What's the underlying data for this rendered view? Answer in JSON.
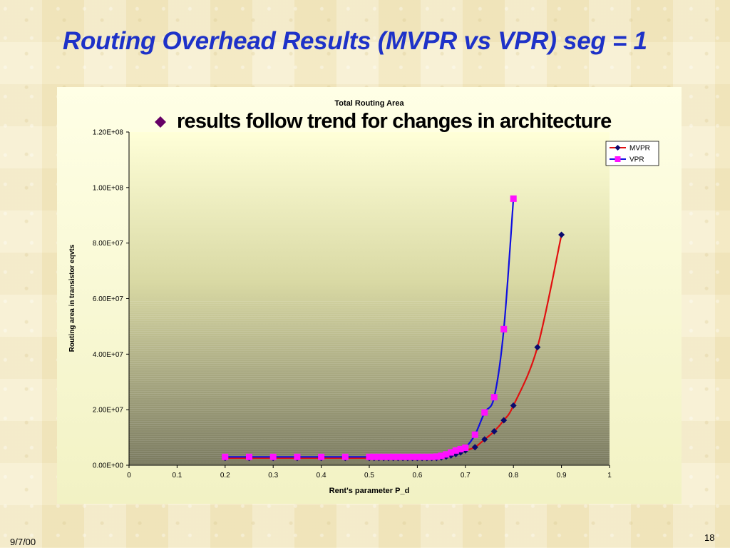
{
  "slide": {
    "title": "Routing Overhead Results  (MVPR vs VPR) seg = 1",
    "bullet": "results follow trend for changes in architecture",
    "bullet_icon": "diamond-bullet-icon",
    "date": "9/7/00",
    "page_number": "18"
  },
  "colors": {
    "title": "#1e32c8",
    "mvpr_line": "#e01010",
    "mvpr_marker": "#0a0a6e",
    "vpr_line": "#1010e0",
    "vpr_marker": "#ff10ff",
    "bullet": "#660066"
  },
  "chart_data": {
    "type": "line",
    "title": "Total Routing Area",
    "xlabel": "Rent's parameter P_d",
    "ylabel": "Routing area in transistor eqvts",
    "xlim": [
      0,
      1
    ],
    "ylim": [
      0,
      120000000
    ],
    "xticks": [
      "0",
      "0.1",
      "0.2",
      "0.3",
      "0.4",
      "0.5",
      "0.6",
      "0.7",
      "0.8",
      "0.9",
      "1"
    ],
    "yticks": [
      "0.00E+00",
      "2.00E+07",
      "4.00E+07",
      "6.00E+07",
      "8.00E+07",
      "1.00E+08",
      "1.20E+08"
    ],
    "grid": false,
    "legend_position": "top-right",
    "series": [
      {
        "name": "MVPR",
        "x": [
          0.2,
          0.25,
          0.3,
          0.35,
          0.4,
          0.45,
          0.5,
          0.51,
          0.52,
          0.53,
          0.54,
          0.55,
          0.56,
          0.57,
          0.58,
          0.59,
          0.6,
          0.61,
          0.62,
          0.63,
          0.64,
          0.65,
          0.66,
          0.67,
          0.68,
          0.69,
          0.7,
          0.72,
          0.74,
          0.76,
          0.78,
          0.8,
          0.85,
          0.9
        ],
        "y": [
          2600000,
          2600000,
          2600000,
          2600000,
          2600000,
          2600000,
          2600000,
          2600000,
          2600000,
          2600000,
          2600000,
          2600000,
          2600000,
          2600000,
          2600000,
          2600000,
          2600000,
          2600000,
          2600000,
          2600000,
          2600000,
          2800000,
          3100000,
          3500000,
          4000000,
          4600000,
          5300000,
          6500000,
          9300000,
          12200000,
          16200000,
          21500000,
          42500000,
          83000000
        ]
      },
      {
        "name": "VPR",
        "x": [
          0.2,
          0.25,
          0.3,
          0.35,
          0.4,
          0.45,
          0.5,
          0.51,
          0.52,
          0.53,
          0.54,
          0.55,
          0.56,
          0.57,
          0.58,
          0.59,
          0.6,
          0.61,
          0.62,
          0.63,
          0.64,
          0.65,
          0.66,
          0.67,
          0.68,
          0.69,
          0.7,
          0.72,
          0.74,
          0.76,
          0.78,
          0.8
        ],
        "y": [
          3000000,
          3000000,
          3000000,
          3000000,
          3000000,
          3000000,
          3000000,
          3000000,
          3000000,
          3000000,
          3000000,
          3000000,
          3000000,
          3000000,
          3000000,
          3000000,
          3000000,
          3000000,
          3000000,
          3000000,
          3100000,
          3400000,
          3900000,
          4600000,
          5300000,
          5800000,
          6300000,
          11000000,
          19000000,
          24500000,
          49000000,
          96000000
        ]
      }
    ]
  }
}
